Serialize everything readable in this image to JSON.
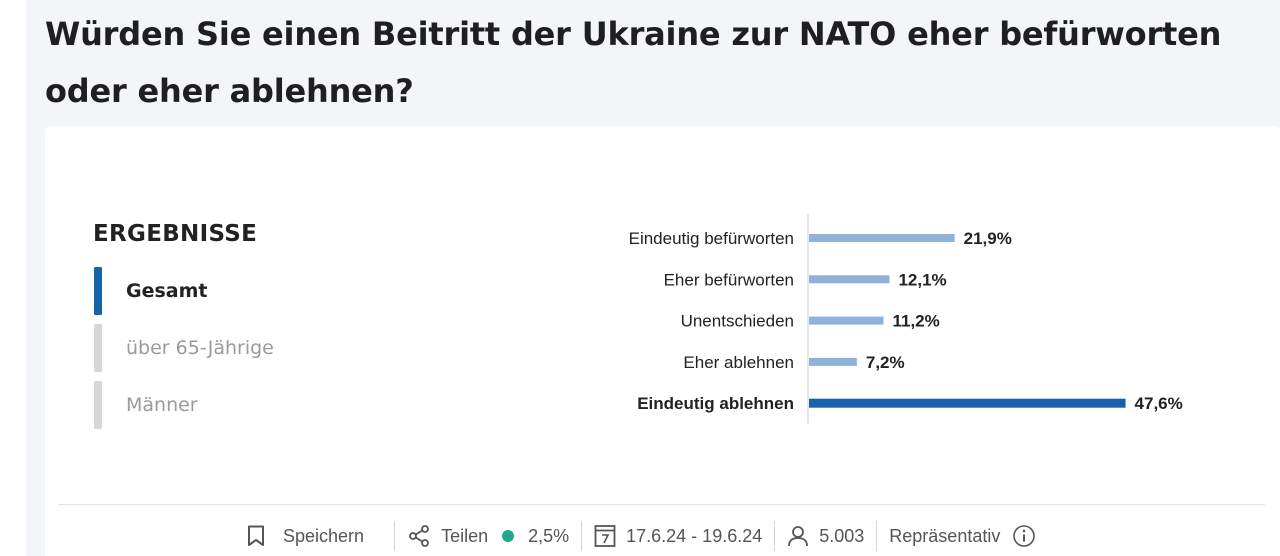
{
  "question": "Würden Sie einen Beitritt der Ukraine zur NATO eher befürworten oder eher ablehnen?",
  "results": {
    "heading": "ERGEBNISSE",
    "filters": [
      {
        "label": "Gesamt",
        "active": true
      },
      {
        "label": "über 65-Jährige",
        "active": false
      },
      {
        "label": "Männer",
        "active": false
      }
    ]
  },
  "chart_data": {
    "type": "bar",
    "orientation": "horizontal",
    "title": "",
    "xlabel": "",
    "ylabel": "",
    "categories": [
      "Eindeutig befürworten",
      "Eher befürworten",
      "Unentschieden",
      "Eher ablehnen",
      "Eindeutig ablehnen"
    ],
    "values": [
      21.9,
      12.1,
      11.2,
      7.2,
      47.6
    ],
    "value_labels": [
      "21,9%",
      "12,1%",
      "11,2%",
      "7,2%",
      "47,6%"
    ],
    "highlight_index": 4,
    "colors": {
      "default": "#8fb2d9",
      "highlight": "#1763ab"
    },
    "xlim": [
      0,
      50
    ],
    "grid": false
  },
  "footer": {
    "save_label": "Speichern",
    "share_label": "Teilen",
    "margin_of_error": "2,5%",
    "date_range": "17.6.24 - 19.6.24",
    "sample_size": "5.003",
    "representative_label": "Repräsentativ",
    "status_color": "#22a88a"
  },
  "icons": {
    "save": "bookmark-icon",
    "share": "share-icon",
    "status": "status-dot-icon",
    "calendar": "calendar-icon",
    "sample": "person-icon",
    "info": "info-icon"
  }
}
